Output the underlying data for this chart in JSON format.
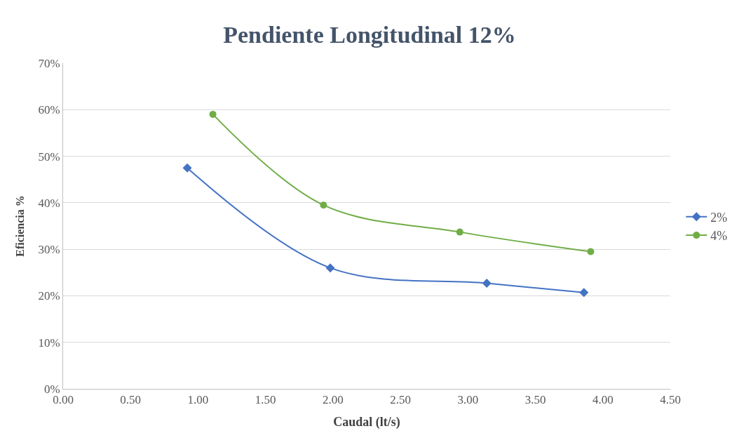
{
  "chart_data": {
    "type": "line",
    "title": "Pendiente Longitudinal 12%",
    "xlabel": "Caudal (lt/s)",
    "ylabel": "Eficiencia %",
    "series": [
      {
        "name": "2%",
        "color": "#4472c4",
        "marker": "diamond",
        "x": [
          0.92,
          1.98,
          3.14,
          3.86
        ],
        "values": [
          47.5,
          26,
          22.7,
          20.7
        ]
      },
      {
        "name": "4%",
        "color": "#70ad47",
        "marker": "circle",
        "x": [
          1.11,
          1.93,
          2.94,
          3.91
        ],
        "values": [
          59,
          39.5,
          33.7,
          29.5
        ]
      }
    ],
    "xlim": [
      0,
      4.5
    ],
    "xticks": [
      {
        "value": 0,
        "label": "0.00"
      },
      {
        "value": 0.5,
        "label": "0.50"
      },
      {
        "value": 1,
        "label": "1.00"
      },
      {
        "value": 1.5,
        "label": "1.50"
      },
      {
        "value": 2,
        "label": "2.00"
      },
      {
        "value": 2.5,
        "label": "2.50"
      },
      {
        "value": 3,
        "label": "3.00"
      },
      {
        "value": 3.5,
        "label": "3.50"
      },
      {
        "value": 4,
        "label": "4.00"
      },
      {
        "value": 4.5,
        "label": "4.50"
      }
    ],
    "ylim": [
      0,
      70
    ],
    "yticks": [
      {
        "value": 0,
        "label": "0%"
      },
      {
        "value": 10,
        "label": "10%"
      },
      {
        "value": 20,
        "label": "20%"
      },
      {
        "value": 30,
        "label": "30%"
      },
      {
        "value": 40,
        "label": "40%"
      },
      {
        "value": 50,
        "label": "50%"
      },
      {
        "value": 60,
        "label": "60%"
      },
      {
        "value": 70,
        "label": "70%"
      }
    ],
    "grid": "y",
    "legend": "right",
    "line_style": "solid"
  }
}
